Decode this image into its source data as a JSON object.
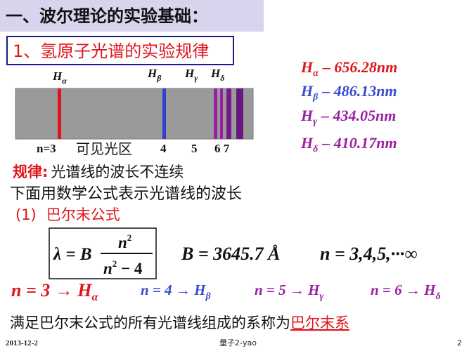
{
  "title": "一、波尔理论的实验基础：",
  "section": "1、氢原子光谱的实验规律",
  "spectrum": {
    "labels": [
      {
        "symbol": "H",
        "sub": "α"
      },
      {
        "symbol": "H",
        "sub": "β"
      },
      {
        "symbol": "H",
        "sub": "γ"
      },
      {
        "symbol": "H",
        "sub": "δ"
      }
    ],
    "n_labels": [
      "n=3",
      "4",
      "5",
      "6 7"
    ],
    "region": "可见光区"
  },
  "wavelengths": [
    {
      "symbol": "H",
      "sub": "α",
      "value": "– 656.28nm"
    },
    {
      "symbol": "H",
      "sub": "β",
      "value": "– 486.13nm"
    },
    {
      "symbol": "H",
      "sub": "γ",
      "value": "– 434.05nm"
    },
    {
      "symbol": "H",
      "sub": "δ",
      "value": "– 410.17nm"
    }
  ],
  "rule": {
    "label": "规律:",
    "text": "光谱线的波长不连续"
  },
  "intro": "下面用数学公式表示光谱线的波长",
  "formula_heading": {
    "number": "(1)",
    "name": "巴尔末公式"
  },
  "formula": {
    "lhs": "λ = B",
    "numerator": "n",
    "num_exp": "2",
    "denominator": "n",
    "den_exp": "2",
    "den_rest": " − 4"
  },
  "constant": "B = 3645.7 Å",
  "n_range": "n = 3,4,5,···∞",
  "transitions": [
    {
      "text": "n = 3 → H",
      "sub": "α"
    },
    {
      "text": "n = 4 → H",
      "sub": "β"
    },
    {
      "text": "n = 5 → H",
      "sub": "γ"
    },
    {
      "text": "n = 6 → H",
      "sub": "δ"
    }
  ],
  "conclusion": {
    "text": "满足巴尔末公式的所有光谱线组成的系称为",
    "term": "巴尔末系"
  },
  "footer": {
    "date": "2013-12-2",
    "center": "量子2-yao",
    "page": "2"
  }
}
